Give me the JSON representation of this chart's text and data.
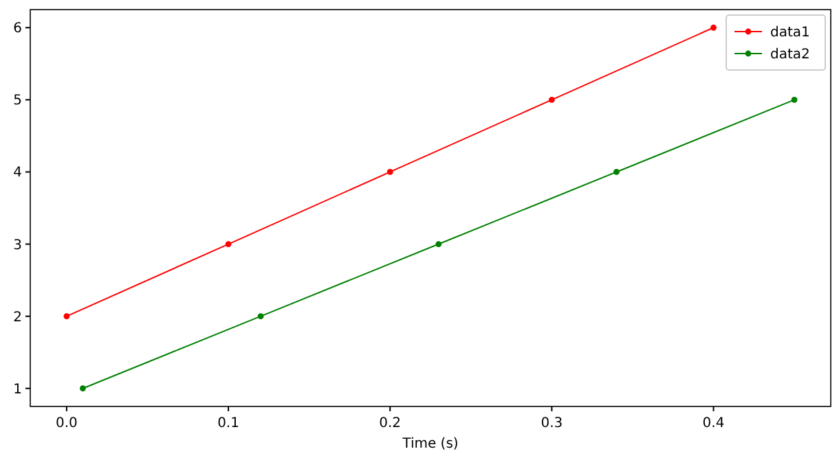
{
  "chart_data": {
    "type": "line",
    "xlabel": "Time (s)",
    "xlim": [
      -0.0225,
      0.4725
    ],
    "xticks": [
      {
        "value": 0,
        "label": "0.0"
      },
      {
        "value": 0.1,
        "label": "0.1"
      },
      {
        "value": 0.2,
        "label": "0.2"
      },
      {
        "value": 0.3,
        "label": "0.3"
      },
      {
        "value": 0.4,
        "label": "0.4"
      }
    ],
    "ylim": [
      0.75,
      6.25
    ],
    "yticks": [
      1,
      2,
      3,
      4,
      5,
      6
    ],
    "series": [
      {
        "name": "data1",
        "color": "#ff0000",
        "x": [
          0,
          0.1,
          0.2,
          0.3,
          0.4
        ],
        "values": [
          2,
          3,
          4,
          5,
          6
        ]
      },
      {
        "name": "data2",
        "color": "#008000",
        "x": [
          0.01,
          0.12,
          0.23,
          0.34,
          0.45
        ],
        "values": [
          1,
          2,
          3,
          4,
          5
        ]
      }
    ],
    "marker": "circle",
    "line_style": "solid",
    "legend": "top right",
    "grid": false
  }
}
